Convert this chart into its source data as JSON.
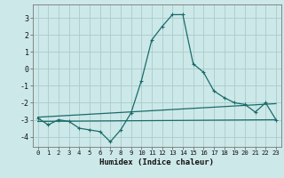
{
  "xlabel": "Humidex (Indice chaleur)",
  "background_color": "#cde8e8",
  "grid_color": "#a8cccc",
  "line_color": "#1a6b6b",
  "xlim": [
    -0.5,
    23.5
  ],
  "ylim": [
    -4.6,
    3.8
  ],
  "yticks": [
    -4,
    -3,
    -2,
    -1,
    0,
    1,
    2,
    3
  ],
  "xticks": [
    0,
    1,
    2,
    3,
    4,
    5,
    6,
    7,
    8,
    9,
    10,
    11,
    12,
    13,
    14,
    15,
    16,
    17,
    18,
    19,
    20,
    21,
    22,
    23
  ],
  "curve1_x": [
    0,
    1,
    2,
    3,
    4,
    5,
    6,
    7,
    8,
    9,
    10,
    11,
    12,
    13,
    14,
    15,
    16,
    17,
    18,
    19,
    20,
    21,
    22,
    23
  ],
  "curve1_y": [
    -2.9,
    -3.3,
    -3.0,
    -3.1,
    -3.5,
    -3.6,
    -3.7,
    -4.3,
    -3.6,
    -2.6,
    -0.7,
    1.7,
    2.5,
    3.2,
    3.2,
    0.3,
    -0.2,
    -1.3,
    -1.7,
    -2.0,
    -2.1,
    -2.55,
    -2.0,
    -3.0
  ],
  "curve2_x": [
    0,
    23
  ],
  "curve2_y": [
    -3.1,
    -3.0
  ],
  "curve3_x": [
    0,
    23
  ],
  "curve3_y": [
    -2.85,
    -2.05
  ],
  "marker_style": "+"
}
